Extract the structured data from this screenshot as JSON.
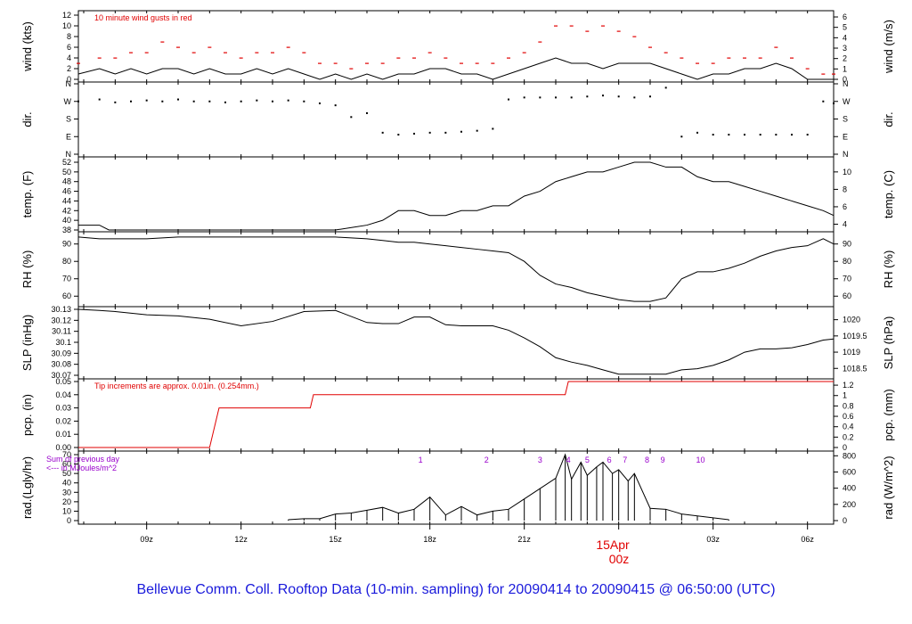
{
  "title": "Bellevue Comm. Coll. Rooftop Data (10-min. sampling) for 20090414  to  20090415 @ 06:50:00  (UTC)",
  "colors": {
    "title": "#1a1adb",
    "red": "#e00000",
    "purple": "#9900cc",
    "ink": "#000000"
  },
  "x_axis": {
    "ticks": [
      "09z",
      "12z",
      "15z",
      "18z",
      "21z",
      "06z",
      "03z"
    ],
    "date_label": "15Apr",
    "midnight_label": "00z"
  },
  "chart_data": [
    {
      "type": "line",
      "panel": "wind",
      "ylabel": "wind (kts)",
      "ylabel_right": "wind (m/s)",
      "annotation": "10  minute wind gusts in red",
      "yticks": [
        0,
        2,
        4,
        6,
        8,
        10,
        12
      ],
      "yticks_right": [
        0,
        1,
        2,
        3,
        4,
        5,
        6
      ],
      "ylim": [
        0,
        12
      ],
      "x_hours": [
        6.83,
        7.5,
        8,
        8.5,
        9,
        9.5,
        10,
        10.5,
        11,
        11.5,
        12,
        12.5,
        13,
        13.5,
        14,
        14.5,
        15,
        15.5,
        16,
        16.5,
        17,
        17.5,
        18,
        18.5,
        19,
        19.5,
        20,
        20.5,
        21,
        21.5,
        22,
        22.5,
        23,
        23.5,
        24,
        24.5,
        25,
        25.5,
        26,
        26.5,
        27,
        27.5,
        28,
        28.5,
        29,
        29.5,
        30,
        30.5,
        30.83
      ],
      "series": [
        {
          "values": [
            1,
            2,
            1,
            2,
            1,
            2,
            2,
            1,
            2,
            1,
            1,
            2,
            1,
            2,
            1,
            0,
            1,
            0,
            1,
            0,
            1,
            1,
            2,
            2,
            1,
            1,
            0,
            1,
            2,
            3,
            4,
            3,
            3,
            2,
            3,
            3,
            3,
            2,
            1,
            0,
            1,
            1,
            2,
            2,
            3,
            2,
            0,
            0,
            0
          ]
        },
        {
          "name": "10  minute wind gusts in red",
          "values": [
            3,
            4,
            4,
            5,
            5,
            7,
            6,
            5,
            6,
            5,
            4,
            5,
            5,
            6,
            5,
            3,
            3,
            2,
            3,
            3,
            4,
            4,
            5,
            4,
            3,
            3,
            3,
            4,
            5,
            7,
            10,
            10,
            9,
            10,
            9,
            8,
            6,
            5,
            4,
            3,
            3,
            4,
            4,
            4,
            6,
            4,
            2,
            1,
            1
          ]
        }
      ]
    },
    {
      "type": "scatter",
      "panel": "dir",
      "ylabel": "dir.",
      "ylabel_right": "dir.",
      "yticks": [
        "N",
        "E",
        "S",
        "W",
        "N"
      ],
      "ylim_degrees": [
        0,
        360
      ],
      "x_hours": [
        6.83,
        7.5,
        8,
        8.5,
        9,
        9.5,
        10,
        10.5,
        11,
        11.5,
        12,
        12.5,
        13,
        13.5,
        14,
        14.5,
        15,
        15.5,
        16,
        16.5,
        17,
        17.5,
        18,
        18.5,
        19,
        19.5,
        20,
        20.5,
        21,
        21.5,
        22,
        22.5,
        23,
        23.5,
        24,
        24.5,
        25,
        25.5,
        26,
        26.5,
        27,
        27.5,
        28,
        28.5,
        29,
        29.5,
        30,
        30.5,
        30.83
      ],
      "values": [
        270,
        280,
        265,
        270,
        275,
        270,
        280,
        270,
        270,
        265,
        270,
        275,
        270,
        275,
        270,
        260,
        250,
        190,
        210,
        110,
        100,
        105,
        110,
        110,
        115,
        120,
        130,
        280,
        290,
        290,
        290,
        290,
        295,
        300,
        295,
        290,
        295,
        340,
        90,
        110,
        100,
        100,
        100,
        100,
        100,
        100,
        100,
        270,
        260
      ]
    },
    {
      "type": "line",
      "panel": "temp",
      "ylabel": "temp. (F)",
      "ylabel_right": "temp. (C)",
      "yticks": [
        38,
        40,
        42,
        44,
        46,
        48,
        50,
        52
      ],
      "yticks_right": [
        4,
        6,
        8,
        10
      ],
      "ylim": [
        38,
        52
      ],
      "x_hours": [
        6.83,
        7.5,
        7.8,
        8,
        9,
        10,
        11,
        12,
        13,
        14,
        15,
        16,
        16.5,
        17,
        17.5,
        18,
        18.5,
        19,
        19.5,
        20,
        20.5,
        21,
        21.5,
        22,
        22.5,
        23,
        23.5,
        24,
        24.5,
        25,
        25.5,
        26,
        26.5,
        27,
        27.5,
        28,
        28.5,
        29,
        29.5,
        30,
        30.5,
        30.83
      ],
      "values": [
        39,
        39,
        38,
        38,
        38,
        38,
        38,
        38,
        38,
        38,
        38,
        39,
        40,
        42,
        42,
        41,
        41,
        42,
        42,
        43,
        43,
        45,
        46,
        48,
        49,
        50,
        50,
        51,
        52,
        52,
        51,
        51,
        49,
        48,
        48,
        47,
        46,
        45,
        44,
        43,
        42,
        41
      ]
    },
    {
      "type": "line",
      "panel": "rh",
      "ylabel": "RH (%)",
      "ylabel_right": "RH (%)",
      "yticks": [
        60,
        70,
        80,
        90
      ],
      "yticks_right": [
        60,
        70,
        80,
        90
      ],
      "ylim": [
        55,
        96
      ],
      "x_hours": [
        6.83,
        7.5,
        8,
        9,
        10,
        11,
        12,
        13,
        14,
        15,
        16,
        16.5,
        17,
        17.5,
        18,
        18.5,
        19,
        19.5,
        20,
        20.5,
        21,
        21.5,
        22,
        22.5,
        23,
        23.5,
        24,
        24.5,
        25,
        25.5,
        26,
        26.5,
        27,
        27.5,
        28,
        28.5,
        29,
        29.5,
        30,
        30.5,
        30.83
      ],
      "values": [
        94,
        93,
        93,
        93,
        94,
        94,
        94,
        94,
        94,
        94,
        93,
        92,
        91,
        91,
        90,
        89,
        88,
        87,
        86,
        85,
        80,
        72,
        67,
        65,
        62,
        60,
        58,
        57,
        57,
        59,
        70,
        74,
        74,
        76,
        79,
        83,
        86,
        88,
        89,
        93,
        90
      ]
    },
    {
      "type": "line",
      "panel": "slp",
      "ylabel": "SLP (inHg)",
      "ylabel_right": "SLP (hPa)",
      "yticks": [
        30.07,
        30.08,
        30.09,
        30.1,
        30.11,
        30.12,
        30.13
      ],
      "yticks_right": [
        1018.5,
        1019,
        1019.5,
        1020
      ],
      "ylim": [
        30.07,
        30.13
      ],
      "x_hours": [
        6.83,
        7.5,
        8,
        9,
        10,
        11,
        12,
        13,
        14,
        15,
        16,
        16.5,
        17,
        17.5,
        18,
        18.5,
        19,
        19.5,
        20,
        20.5,
        21,
        21.5,
        22,
        22.5,
        23,
        23.5,
        24,
        24.5,
        25,
        25.5,
        26,
        26.5,
        27,
        27.5,
        28,
        28.5,
        29,
        29.5,
        30,
        30.5,
        30.83
      ],
      "values": [
        30.13,
        30.129,
        30.128,
        30.125,
        30.124,
        30.121,
        30.115,
        30.119,
        30.128,
        30.129,
        30.118,
        30.117,
        30.117,
        30.123,
        30.123,
        30.116,
        30.115,
        30.115,
        30.115,
        30.111,
        30.104,
        30.096,
        30.086,
        30.082,
        30.079,
        30.075,
        30.071,
        30.071,
        30.071,
        30.071,
        30.075,
        30.076,
        30.079,
        30.084,
        30.091,
        30.094,
        30.094,
        30.095,
        30.098,
        30.102,
        30.103
      ]
    },
    {
      "type": "line",
      "panel": "pcp",
      "ylabel": "pcp. (in)",
      "ylabel_right": "pcp. (mm)",
      "annotation": "Tip increments are approx. 0.01in. (0.254mm.)",
      "yticks": [
        0,
        0.01,
        0.02,
        0.03,
        0.04,
        0.05
      ],
      "yticks_right": [
        0,
        0.2,
        0.4,
        0.6,
        0.8,
        1,
        1.2
      ],
      "ylim": [
        0,
        0.05
      ],
      "x_hours": [
        6.83,
        11,
        11.3,
        14.2,
        14.3,
        22.3,
        22.4,
        30.83
      ],
      "series": [
        {
          "values": [
            0,
            0,
            0.03,
            0.03,
            0.04,
            0.04,
            0.05,
            0.05
          ]
        }
      ]
    },
    {
      "type": "bar",
      "panel": "rad",
      "ylabel": "rad.(Lgly/hr)",
      "ylabel_right": "rad (W/m^2)",
      "annotation": "Sum of previous day",
      "annotation_units": "<--- in MJoules/m^2",
      "yticks": [
        0,
        10,
        20,
        30,
        40,
        50,
        60,
        70
      ],
      "yticks_right": [
        0,
        200,
        400,
        600,
        800
      ],
      "ylim": [
        0,
        70
      ],
      "hour_markers": [
        "1",
        "2",
        "3",
        "4",
        "5",
        "6",
        "7",
        "8",
        "9",
        "10"
      ],
      "x_hours": [
        13.5,
        14,
        14.5,
        15,
        15.5,
        16,
        16.5,
        17,
        17.5,
        18,
        18.5,
        19,
        19.5,
        20,
        20.5,
        21,
        21.5,
        22,
        22.3,
        22.5,
        22.8,
        23,
        23.3,
        23.5,
        23.8,
        24,
        24.3,
        24.5,
        25,
        25.5,
        26,
        26.5,
        27,
        27.5
      ],
      "values": [
        1,
        2,
        2,
        7,
        8,
        11,
        14,
        8,
        12,
        25,
        6,
        15,
        6,
        10,
        12,
        23,
        34,
        45,
        70,
        44,
        62,
        48,
        57,
        62,
        50,
        54,
        42,
        50,
        13,
        12,
        7,
        5,
        3,
        1
      ]
    }
  ]
}
